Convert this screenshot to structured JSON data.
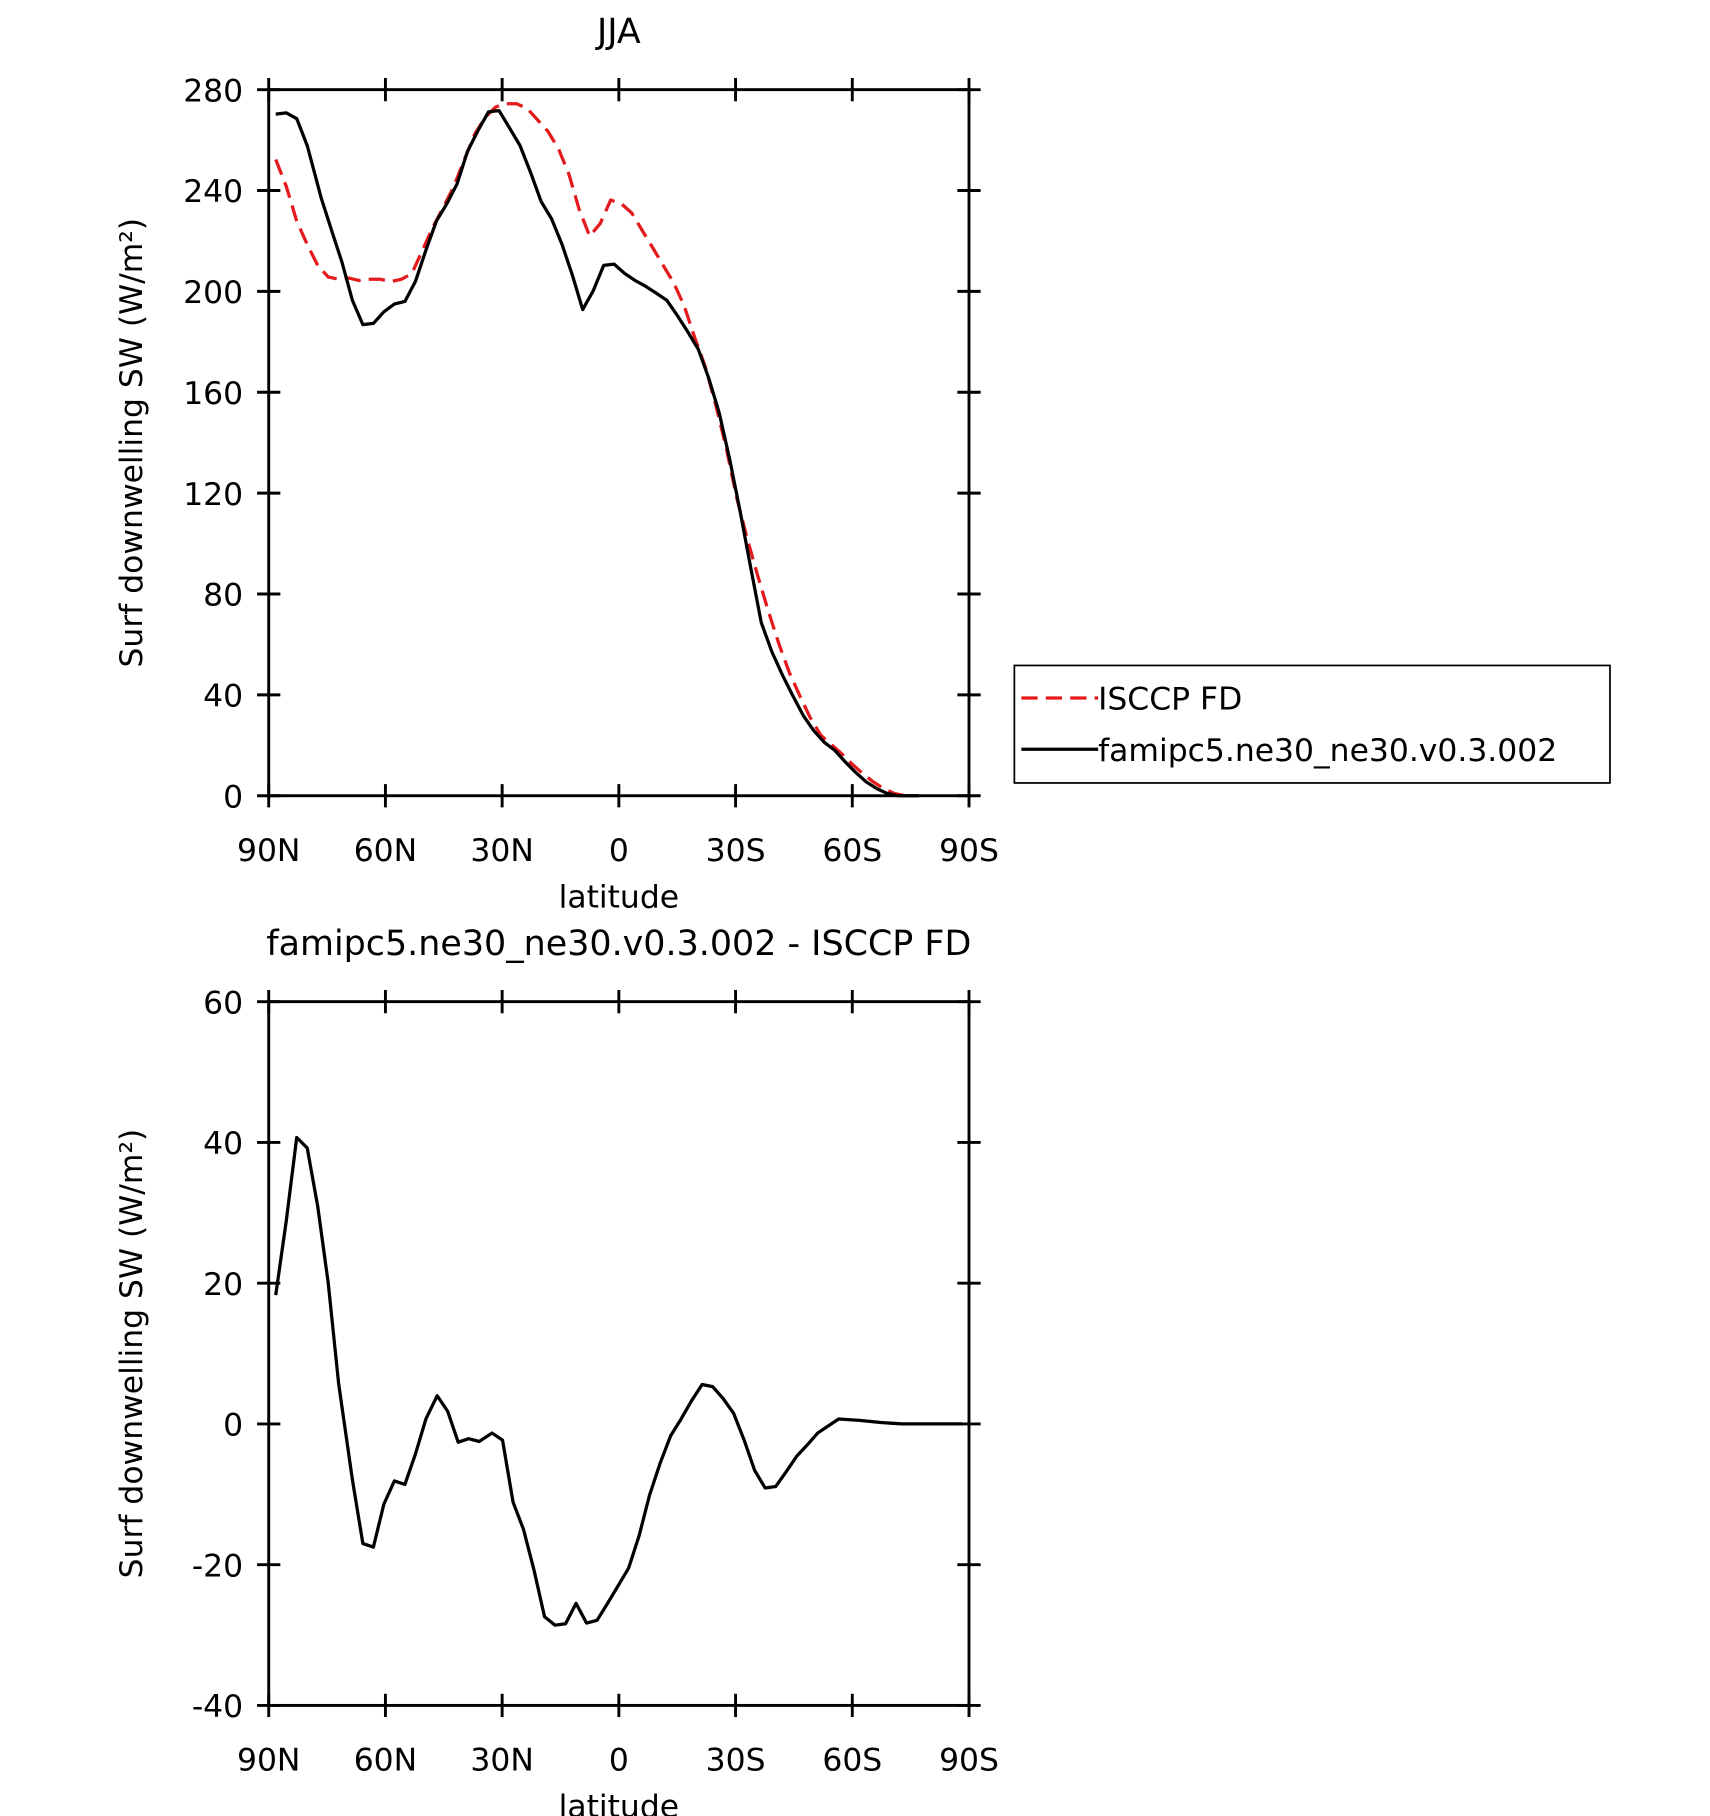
{
  "chart_data": [
    {
      "type": "line",
      "title": "JJA",
      "xlabel": "latitude",
      "ylabel": "Surf downwelling SW (W/m²)",
      "xlim": [
        90,
        -90
      ],
      "ylim": [
        0,
        280
      ],
      "xticks": [
        {
          "value": 90,
          "label": "90N"
        },
        {
          "value": 60,
          "label": "60N"
        },
        {
          "value": 30,
          "label": "30N"
        },
        0,
        {
          "value": -30,
          "label": "30S"
        },
        {
          "value": -60,
          "label": "60S"
        },
        {
          "value": -90,
          "label": "90S"
        }
      ],
      "yticks": [
        0,
        40,
        80,
        120,
        160,
        200,
        240,
        280
      ],
      "legend": "right",
      "series": [
        {
          "name": "ISCCP FD",
          "color": "#e41a1c",
          "dash": true,
          "x": [
            88.2,
            85.5,
            82.8,
            80.1,
            77.4,
            74.7,
            72.0,
            69.4,
            66.7,
            64.0,
            61.3,
            58.6,
            55.9,
            53.2,
            50.5,
            47.8,
            45.1,
            42.4,
            39.7,
            37.0,
            34.4,
            31.7,
            29.0,
            26.3,
            23.6,
            20.9,
            18.2,
            15.5,
            12.8,
            10.2,
            7.5,
            4.8,
            2.1,
            -0.6,
            -3.3,
            -6.0,
            -8.7,
            -11.4,
            -14.1,
            -16.8,
            -19.5,
            -22.2,
            -24.9,
            -27.6,
            -30.3,
            -33.0,
            -35.7,
            -38.4,
            -41.1,
            -43.8,
            -46.5,
            -49.2,
            -51.9,
            -54.6,
            -57.3,
            -60.0,
            -62.7,
            -65.4,
            -68.1,
            -70.8,
            -73.5
          ],
          "values": [
            252.3,
            241.7,
            227.9,
            218.6,
            210.3,
            205.7,
            204.8,
            205.3,
            204.3,
            204.8,
            204.8,
            203.9,
            204.8,
            207.1,
            216.3,
            225.5,
            233.4,
            241.7,
            252.3,
            262.5,
            268.9,
            273.1,
            274.4,
            274.4,
            272.6,
            268.0,
            263.4,
            256.5,
            246.3,
            232.5,
            221.9,
            226.9,
            236.2,
            234.8,
            231.1,
            224.2,
            217.3,
            210.3,
            203.4,
            194.2,
            181.7,
            170.2,
            155.0,
            137.9,
            118.1,
            101.9,
            87.2,
            73.3,
            60.4,
            48.9,
            39.7,
            30.9,
            24.0,
            20.3,
            16.6,
            12.5,
            8.8,
            5.5,
            2.8,
            0.9,
            0
          ]
        },
        {
          "name": "famipc5.ne30_ne30.v0.3.002",
          "color": "#000000",
          "dash": false,
          "x": [
            88.2,
            85.5,
            82.8,
            80.1,
            76.5,
            73.8,
            71.2,
            68.5,
            65.8,
            63.1,
            60.4,
            57.7,
            55.0,
            52.3,
            49.6,
            46.9,
            44.2,
            41.6,
            38.9,
            36.2,
            33.5,
            30.8,
            28.1,
            25.4,
            22.7,
            20.0,
            17.3,
            14.6,
            11.9,
            9.3,
            6.6,
            3.9,
            1.2,
            -1.5,
            -4.2,
            -6.9,
            -9.6,
            -12.3,
            -15.0,
            -17.7,
            -20.4,
            -23.1,
            -25.8,
            -28.5,
            -31.2,
            -33.9,
            -36.6,
            -39.3,
            -42.0,
            -44.7,
            -47.4,
            -50.1,
            -52.8,
            -55.5,
            -58.2,
            -60.9,
            -63.6,
            -66.3,
            -69.0,
            -71.7,
            -74.4,
            -77.1
          ],
          "values": [
            270.3,
            270.8,
            268.5,
            257.8,
            237.0,
            224.0,
            211.7,
            196.5,
            186.8,
            187.3,
            191.9,
            195.0,
            196.0,
            203.9,
            216.3,
            227.9,
            234.8,
            242.6,
            255.5,
            263.8,
            271.2,
            271.7,
            264.8,
            257.8,
            247.2,
            235.7,
            228.8,
            218.6,
            206.2,
            192.8,
            200.2,
            210.3,
            210.8,
            207.1,
            204.3,
            202.0,
            199.3,
            196.5,
            190.5,
            184.0,
            177.1,
            165.6,
            151.8,
            133.3,
            112.5,
            90.4,
            68.7,
            57.2,
            48.0,
            39.7,
            31.8,
            25.8,
            21.2,
            18.0,
            13.4,
            9.2,
            5.5,
            2.8,
            0.9,
            0,
            0,
            0
          ]
        }
      ]
    },
    {
      "type": "line",
      "title": "famipc5.ne30_ne30.v0.3.002 - ISCCP FD",
      "xlabel": "latitude",
      "ylabel": "Surf downwelling SW (W/m²)",
      "xlim": [
        90,
        -90
      ],
      "ylim": [
        -40,
        60
      ],
      "xticks": [
        {
          "value": 90,
          "label": "90N"
        },
        {
          "value": 60,
          "label": "60N"
        },
        {
          "value": 30,
          "label": "30N"
        },
        0,
        {
          "value": -30,
          "label": "30S"
        },
        {
          "value": -60,
          "label": "60S"
        },
        {
          "value": -90,
          "label": "90S"
        }
      ],
      "yticks": [
        -40,
        -20,
        0,
        20,
        40,
        60
      ],
      "series": [
        {
          "color": "#000000",
          "dash": false,
          "x": [
            88.2,
            85.5,
            82.8,
            80.1,
            77.4,
            74.7,
            72.0,
            68.5,
            65.8,
            63.1,
            60.4,
            57.7,
            55.0,
            52.3,
            49.6,
            46.7,
            44.0,
            41.3,
            38.6,
            35.9,
            32.6,
            29.9,
            27.2,
            24.5,
            21.8,
            19.1,
            16.4,
            13.7,
            11.0,
            8.3,
            5.6,
            2.9,
            0.2,
            -2.5,
            -5.2,
            -7.9,
            -10.6,
            -13.3,
            -16.0,
            -18.7,
            -21.4,
            -24.1,
            -26.8,
            -29.5,
            -32.2,
            -34.9,
            -37.6,
            -40.3,
            -43.0,
            -45.7,
            -48.4,
            -51.1,
            -53.8,
            -56.5,
            -61.9,
            -67.3,
            -72.7,
            -78.1,
            -83.5,
            -88.3
          ],
          "values": [
            18.3,
            28.8,
            40.7,
            39.2,
            30.9,
            20.0,
            5.6,
            -7.9,
            -17.0,
            -17.5,
            -11.4,
            -8.1,
            -8.6,
            -4.3,
            0.7,
            4.0,
            1.8,
            -2.6,
            -2.1,
            -2.5,
            -1.3,
            -2.3,
            -11.1,
            -15.0,
            -20.8,
            -27.4,
            -28.6,
            -28.4,
            -25.5,
            -28.3,
            -27.9,
            -25.5,
            -23.0,
            -20.5,
            -15.9,
            -10.1,
            -5.6,
            -1.7,
            0.7,
            3.3,
            5.6,
            5.3,
            3.6,
            1.5,
            -2.3,
            -6.6,
            -9.1,
            -8.9,
            -6.8,
            -4.6,
            -3.0,
            -1.3,
            -0.3,
            0.7,
            0.5,
            0.2,
            0,
            0,
            0,
            0
          ]
        }
      ]
    }
  ]
}
